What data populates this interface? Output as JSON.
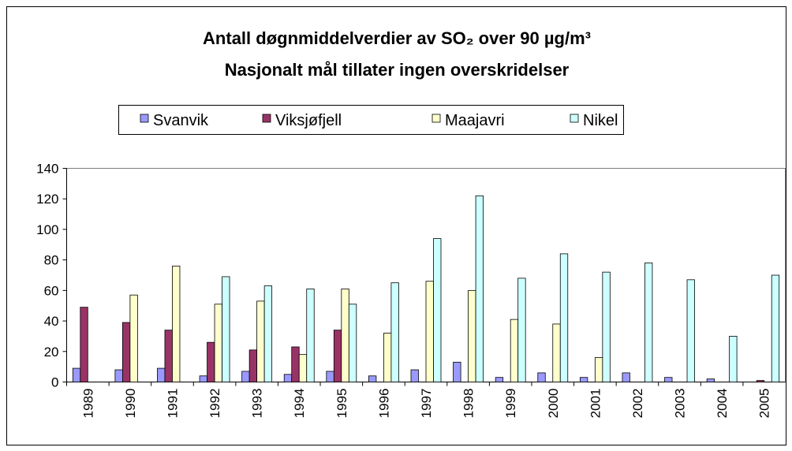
{
  "chart_data": {
    "type": "bar",
    "title": "Antall døgnmiddelverdier av SO₂ over 90 µg/m³",
    "subtitle": "Nasjonalt mål tillater ingen overskridelser",
    "categories": [
      "1989",
      "1990",
      "1991",
      "1992",
      "1993",
      "1994",
      "1995",
      "1996",
      "1997",
      "1998",
      "1999",
      "2000",
      "2001",
      "2002",
      "2003",
      "2004",
      "2005"
    ],
    "series": [
      {
        "name": "Svanvik",
        "color": "#9999ff",
        "values": [
          9,
          8,
          9,
          4,
          7,
          5,
          7,
          4,
          8,
          13,
          3,
          6,
          3,
          6,
          3,
          2,
          0
        ]
      },
      {
        "name": "Viksjøfjell",
        "color": "#993366",
        "values": [
          49,
          39,
          34,
          26,
          21,
          23,
          34,
          0,
          0,
          0,
          0,
          0,
          0,
          0,
          0,
          0,
          1
        ]
      },
      {
        "name": "Maajavri",
        "color": "#ffffcc",
        "values": [
          0,
          57,
          76,
          51,
          53,
          18,
          61,
          32,
          66,
          60,
          41,
          38,
          16,
          0,
          0,
          0,
          0
        ]
      },
      {
        "name": "Nikel",
        "color": "#ccffff",
        "values": [
          0,
          0,
          0,
          69,
          63,
          61,
          51,
          65,
          94,
          122,
          68,
          84,
          72,
          78,
          67,
          30,
          70
        ]
      }
    ],
    "ylim": [
      0,
      140
    ],
    "yticks": [
      0,
      20,
      40,
      60,
      80,
      100,
      120,
      140
    ],
    "grid": false,
    "legend": "top"
  }
}
